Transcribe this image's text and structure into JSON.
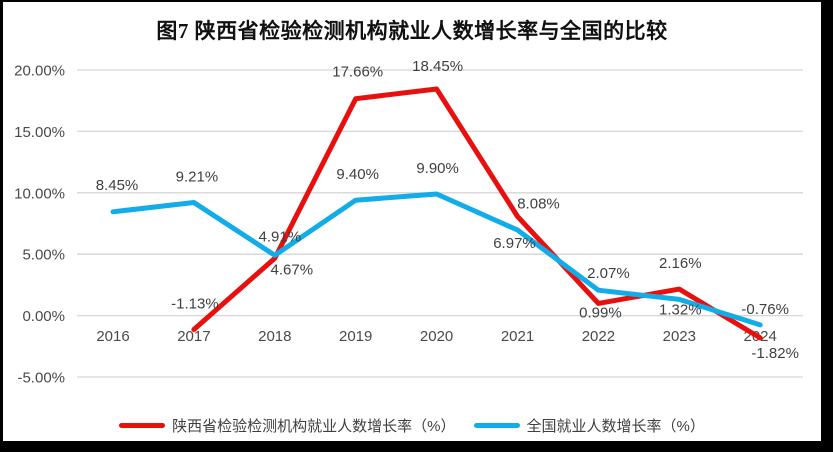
{
  "title": "图7 陕西省检验检测机构就业人数增长率与全国的比较",
  "chart_data": {
    "type": "line",
    "categories": [
      "2016",
      "2017",
      "2018",
      "2019",
      "2020",
      "2021",
      "2022",
      "2023",
      "2024"
    ],
    "y_axis": {
      "ticks": [
        "20.00%",
        "15.00%",
        "10.00%",
        "5.00%",
        "0.00%",
        "-5.00%"
      ],
      "tick_values": [
        20,
        15,
        10,
        5,
        0,
        -5
      ],
      "min": -5,
      "max": 20
    },
    "grid": true,
    "legend_position": "bottom",
    "series": [
      {
        "id": "shaanxi",
        "name": "陕西省检验检测机构就业人数增长率（%）",
        "color": "#e8100e",
        "values": [
          null,
          -1.13,
          4.67,
          17.66,
          18.45,
          8.08,
          0.99,
          2.16,
          -1.82
        ],
        "labels": [
          null,
          "-1.13%",
          "4.67%",
          "17.66%",
          "18.45%",
          "8.08%",
          "0.99%",
          "2.16%",
          "-1.82%"
        ],
        "label_offsets": [
          null,
          [
            1,
            -21
          ],
          [
            17,
            16
          ],
          [
            2,
            -22
          ],
          [
            1,
            -18
          ],
          [
            21,
            -8
          ],
          [
            2,
            14
          ],
          [
            1,
            -21
          ],
          [
            15,
            20
          ]
        ]
      },
      {
        "id": "national",
        "name": "全国就业人数增长率（%）",
        "color": "#12ade8",
        "values": [
          8.45,
          9.21,
          4.91,
          9.4,
          9.9,
          6.97,
          2.07,
          1.32,
          -0.76
        ],
        "labels": [
          "8.45%",
          "9.21%",
          "4.91%",
          "9.40%",
          "9.90%",
          "6.97%",
          "2.07%",
          "1.32%",
          "-0.76%"
        ],
        "label_offsets": [
          [
            4,
            -22
          ],
          [
            3,
            -21
          ],
          [
            5,
            -14
          ],
          [
            2,
            -21
          ],
          [
            1,
            -21
          ],
          [
            -3,
            18
          ],
          [
            10,
            -12
          ],
          [
            1,
            15
          ],
          [
            5,
            -11
          ]
        ]
      }
    ]
  },
  "colors": {
    "frame": "#000000",
    "background": "#ffffff",
    "gridline": "#d6d6d6",
    "axis_text": "#4a4a4a",
    "data_label_text": "#3f3f3f",
    "title_text": "#111111"
  }
}
